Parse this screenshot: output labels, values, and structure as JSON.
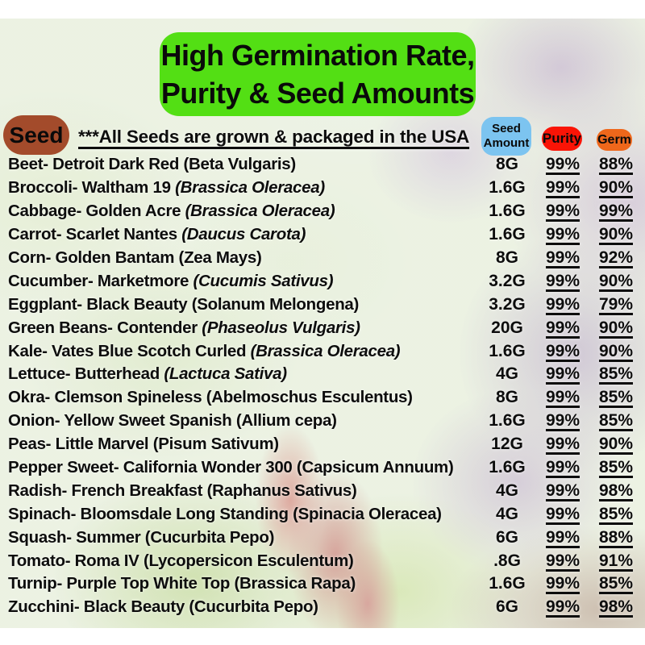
{
  "banner": {
    "line1": "High Germination Rate,",
    "line2": "Purity & Seed Amounts"
  },
  "header": {
    "seed_label": "Seed",
    "usa_note": "***All Seeds are grown & packaged in the USA",
    "amount_badge_line1": "Seed",
    "amount_badge_line2": "Amount",
    "purity_badge": "Purity",
    "germ_badge": "Germ"
  },
  "colors": {
    "banner_green": "#53df14",
    "seed_pill_brown": "#a34b2b",
    "amount_badge_blue": "#7cc4f0",
    "purity_badge_red": "#fa1406",
    "germ_badge_orange": "#ee671b"
  },
  "table": {
    "rows": [
      {
        "name": "Beet- Detroit Dark Red",
        "latin": "(Beta Vulgaris)",
        "latin_italic": false,
        "amount": "8G",
        "purity": "99%",
        "germ": "88%"
      },
      {
        "name": "Broccoli- Waltham 19",
        "latin": "(Brassica Oleracea)",
        "latin_italic": true,
        "amount": "1.6G",
        "purity": "99%",
        "germ": "90%"
      },
      {
        "name": "Cabbage- Golden Acre",
        "latin": "(Brassica Oleracea)",
        "latin_italic": true,
        "amount": "1.6G",
        "purity": "99%",
        "germ": "99%"
      },
      {
        "name": "Carrot- Scarlet Nantes",
        "latin": "(Daucus Carota)",
        "latin_italic": true,
        "amount": "1.6G",
        "purity": "99%",
        "germ": "90%"
      },
      {
        "name": "Corn- Golden Bantam",
        "latin": "(Zea Mays)",
        "latin_italic": false,
        "amount": "8G",
        "purity": "99%",
        "germ": "92%"
      },
      {
        "name": "Cucumber- Marketmore",
        "latin": "(Cucumis Sativus)",
        "latin_italic": true,
        "amount": "3.2G",
        "purity": "99%",
        "germ": "90%"
      },
      {
        "name": "Eggplant- Black Beauty",
        "latin": "(Solanum Melongena)",
        "latin_italic": false,
        "amount": "3.2G",
        "purity": "99%",
        "germ": "79%"
      },
      {
        "name": "Green Beans- Contender",
        "latin": "(Phaseolus Vulgaris)",
        "latin_italic": true,
        "amount": "20G",
        "purity": "99%",
        "germ": "90%"
      },
      {
        "name": "Kale- Vates Blue Scotch Curled",
        "latin": "(Brassica Oleracea)",
        "latin_italic": true,
        "amount": "1.6G",
        "purity": "99%",
        "germ": "90%"
      },
      {
        "name": "Lettuce- Butterhead",
        "latin": "(Lactuca Sativa)",
        "latin_italic": true,
        "amount": "4G",
        "purity": "99%",
        "germ": "85%"
      },
      {
        "name": "Okra- Clemson Spineless",
        "latin": "(Abelmoschus Esculentus)",
        "latin_italic": false,
        "amount": "8G",
        "purity": "99%",
        "germ": "85%"
      },
      {
        "name": "Onion- Yellow Sweet Spanish",
        "latin": "(Allium cepa)",
        "latin_italic": false,
        "amount": "1.6G",
        "purity": "99%",
        "germ": "85%"
      },
      {
        "name": "Peas- Little Marvel",
        "latin": "(Pisum Sativum)",
        "latin_italic": false,
        "amount": "12G",
        "purity": "99%",
        "germ": "90%"
      },
      {
        "name": "Pepper Sweet- California Wonder 300",
        "latin": "(Capsicum Annuum)",
        "latin_italic": false,
        "amount": "1.6G",
        "purity": "99%",
        "germ": "85%"
      },
      {
        "name": "Radish- French Breakfast",
        "latin": "(Raphanus Sativus)",
        "latin_italic": false,
        "amount": "4G",
        "purity": "99%",
        "germ": "98%"
      },
      {
        "name": "Spinach- Bloomsdale Long Standing",
        "latin": "(Spinacia Oleracea)",
        "latin_italic": false,
        "amount": "4G",
        "purity": "99%",
        "germ": "85%"
      },
      {
        "name": "Squash- Summer",
        "latin": "(Cucurbita Pepo)",
        "latin_italic": false,
        "amount": "6G",
        "purity": "99%",
        "germ": "88%"
      },
      {
        "name": "Tomato- Roma IV",
        "latin": "(Lycopersicon Esculentum)",
        "latin_italic": false,
        "amount": ".8G",
        "purity": "99%",
        "germ": "91%"
      },
      {
        "name": "Turnip- Purple Top White Top",
        "latin": "(Brassica Rapa)",
        "latin_italic": false,
        "amount": "1.6G",
        "purity": "99%",
        "germ": "85%"
      },
      {
        "name": "Zucchini- Black Beauty",
        "latin": "(Cucurbita Pepo)",
        "latin_italic": false,
        "amount": "6G",
        "purity": "99%",
        "germ": "98%"
      }
    ]
  }
}
